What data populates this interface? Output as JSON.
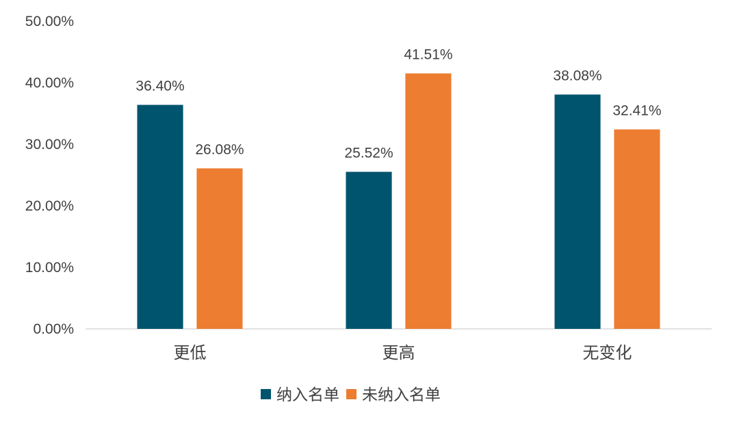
{
  "chart_data": {
    "type": "bar",
    "title": "",
    "xlabel": "",
    "ylabel": "",
    "categories": [
      "更低",
      "更高",
      "无变化"
    ],
    "series": [
      {
        "name": "纳入名单",
        "color": "#00546E",
        "values": [
          36.4,
          25.52,
          38.08
        ],
        "labels": [
          "36.40%",
          "25.52%",
          "38.08%"
        ]
      },
      {
        "name": "未纳入名单",
        "color": "#ED7D31",
        "values": [
          26.08,
          41.51,
          32.41
        ],
        "labels": [
          "26.08%",
          "41.51%",
          "32.41%"
        ]
      }
    ],
    "ylim": [
      0,
      50
    ],
    "yticks": [
      "0.00%",
      "10.00%",
      "20.00%",
      "30.00%",
      "40.00%",
      "50.00%"
    ],
    "grid": false,
    "legend_position": "bottom",
    "axis_color": "#D9D9D9",
    "text_color": "#404040"
  }
}
